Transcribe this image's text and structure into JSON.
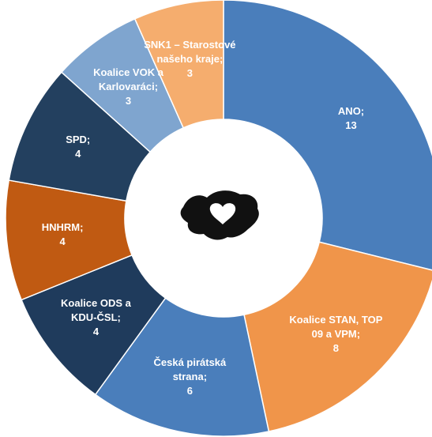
{
  "chart_data": {
    "type": "donut",
    "categories": [
      "ANO;",
      "Koalice STAN, TOP 09 a VPM;",
      "Česká pirátská strana;",
      "Koalice ODS a KDU-ČSL;",
      "HNHRM;",
      "SPD;",
      "Koalice VOK a Karlovaráci;",
      "SNK1 – Starostové našeho kraje;"
    ],
    "values": [
      13,
      8,
      6,
      4,
      4,
      4,
      3,
      3
    ],
    "colors": [
      "#4a7ebb",
      "#f0954a",
      "#4a7ebb",
      "#1f3b5c",
      "#c05a12",
      "#23405f",
      "#7fa5cf",
      "#f5ad6e"
    ]
  }
}
